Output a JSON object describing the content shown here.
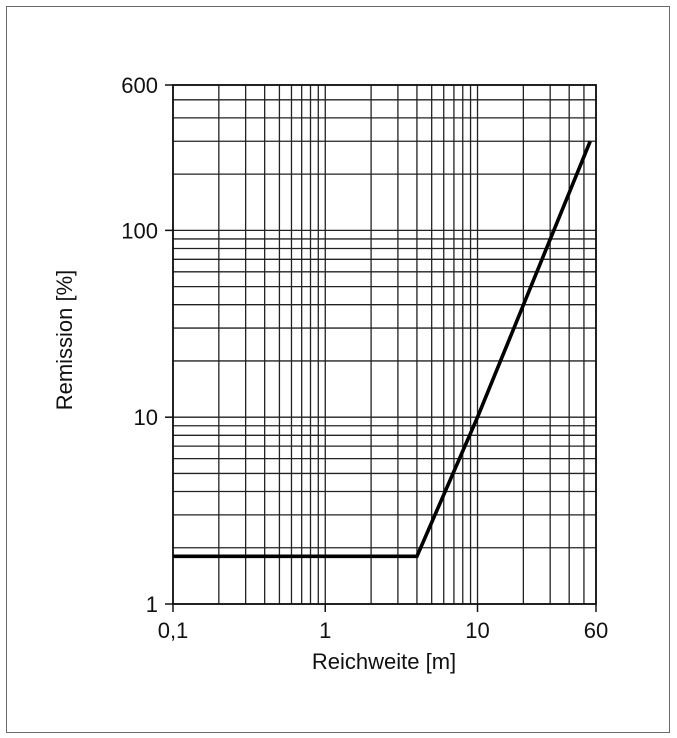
{
  "chart_data": {
    "type": "line",
    "title": "",
    "xlabel": "Reichweite [m]",
    "ylabel": "Remission [%]",
    "x_scale": "log",
    "y_scale": "log",
    "xlim": [
      0.1,
      60
    ],
    "ylim": [
      1,
      600
    ],
    "grid": true,
    "x_tick_values": [
      0.1,
      1,
      10,
      60
    ],
    "x_tick_labels": [
      "0,1",
      "1",
      "10",
      "60"
    ],
    "y_tick_values": [
      1,
      10,
      100,
      600
    ],
    "y_tick_labels": [
      "1",
      "10",
      "100",
      "600"
    ],
    "series": [
      {
        "x": [
          0.1,
          4,
          10,
          55
        ],
        "y": [
          1.8,
          1.8,
          10,
          300
        ]
      }
    ]
  }
}
